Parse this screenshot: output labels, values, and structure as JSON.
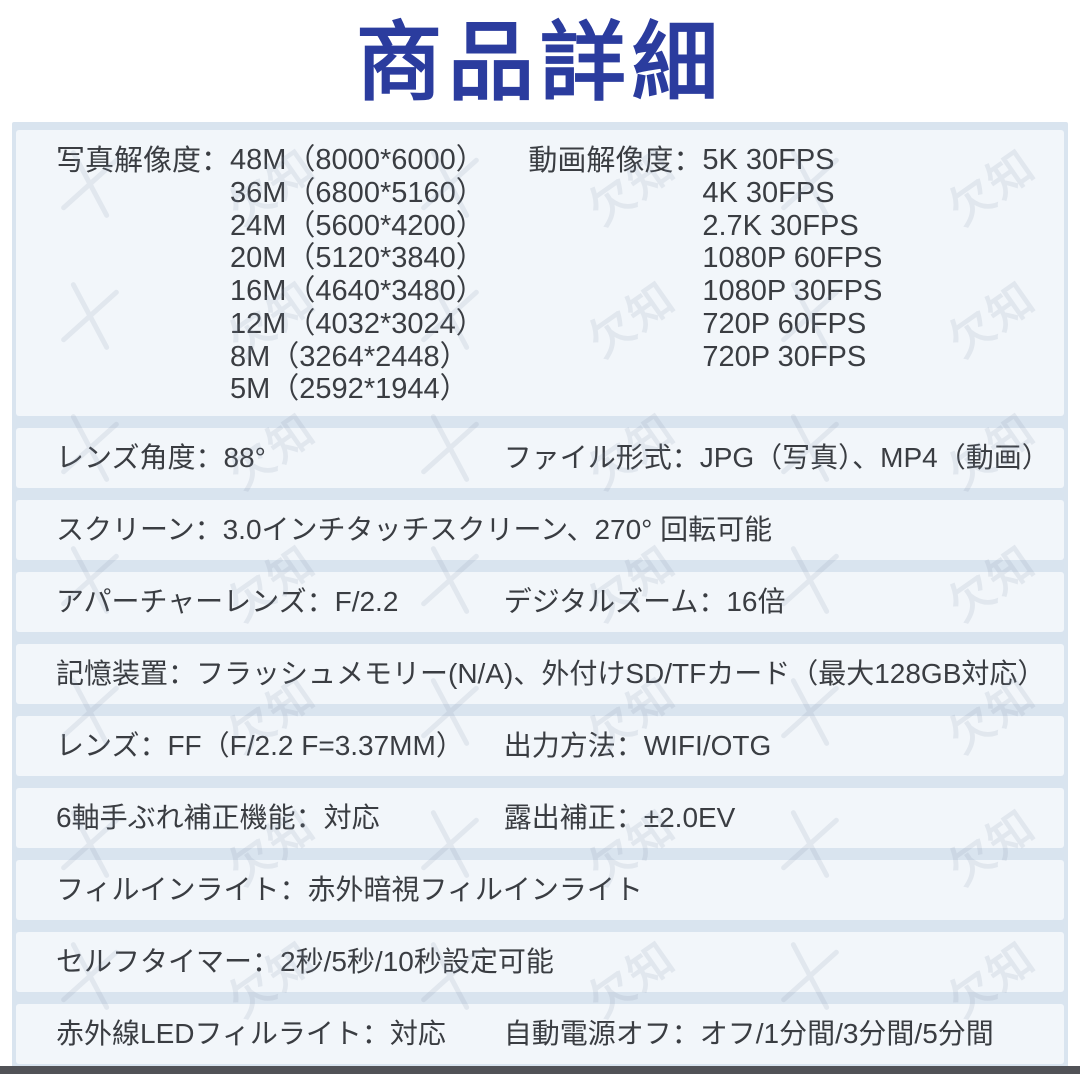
{
  "page": {
    "title": "商品詳細"
  },
  "colors": {
    "title_blue": "#2b3c9e",
    "panel_bg": "#d9e4ef",
    "row_bg": "#f2f6fa",
    "text_dark": "#3a3d42",
    "bottom_bar": "#515257",
    "watermark": "#8494ad"
  },
  "resolution_row": {
    "photo_label": "写真解像度：",
    "photo_values": [
      "48M（8000*6000）",
      "36M（6800*5160）",
      "24M（5600*4200）",
      "20M（5120*3840）",
      "16M（4640*3480）",
      "12M（4032*3024）",
      "8M（3264*2448）",
      "5M（2592*1944）"
    ],
    "video_label": "動画解像度：",
    "video_values": [
      "5K 30FPS",
      "4K 30FPS",
      "2.7K 30FPS",
      "1080P 60FPS",
      "1080P 30FPS",
      "720P 60FPS",
      "720P 30FPS"
    ]
  },
  "spec_rows": [
    {
      "cells": [
        "レンズ角度：88°",
        "ファイル形式：JPG（写真）、MP4（動画）"
      ]
    },
    {
      "cells": [
        "スクリーン：3.0インチタッチスクリーン、270° 回転可能"
      ]
    },
    {
      "cells": [
        "アパーチャーレンズ：F/2.2",
        "デジタルズーム：16倍"
      ]
    },
    {
      "cells": [
        "記憶装置：フラッシュメモリー(N/A)、外付けSD/TFカード（最大128GB対応）"
      ]
    },
    {
      "cells": [
        "レンズ：FF（F/2.2 F=3.37MM）",
        "出力方法：WIFI/OTG"
      ]
    },
    {
      "cells": [
        "6軸手ぶれ補正機能：対応",
        "露出補正：±2.0EV"
      ]
    },
    {
      "cells": [
        "フィルインライト：赤外暗視フィルインライト"
      ]
    },
    {
      "cells": [
        "セルフタイマー：2秒/5秒/10秒設定可能"
      ]
    },
    {
      "cells": [
        "赤外線LEDフィルライト：対応",
        "自動電源オフ：オフ/1分間/3分間/5分間"
      ]
    }
  ],
  "watermark": {
    "icon": "scissors-cross-icon",
    "text": "欠知",
    "count": 42
  }
}
